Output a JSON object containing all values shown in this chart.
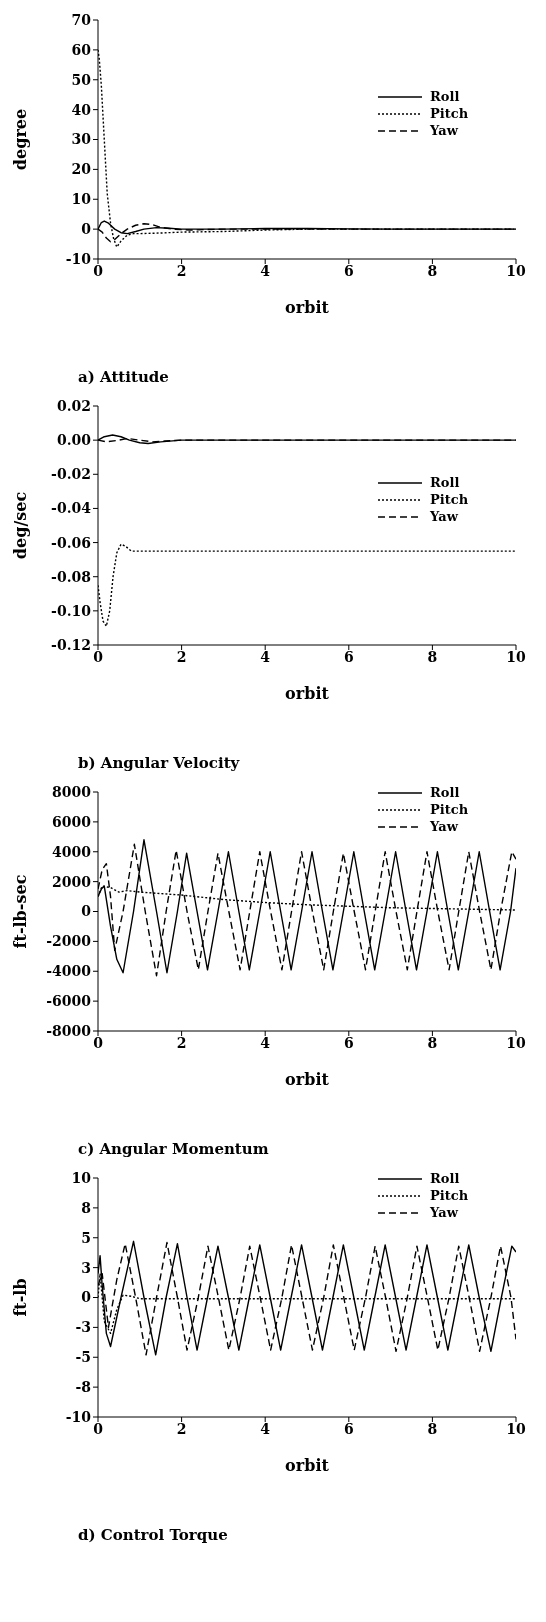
{
  "chart_data": [
    {
      "type": "line",
      "title": "a) Attitude",
      "xlabel": "orbit",
      "ylabel": "degree",
      "xlim": [
        0,
        10
      ],
      "xticks": [
        0,
        2,
        4,
        6,
        8,
        10
      ],
      "ylim": [
        -10,
        70
      ],
      "yticks": [
        -10,
        0,
        10,
        20,
        30,
        40,
        50,
        60,
        70
      ],
      "legend": "right",
      "series": [
        {
          "name": "Roll",
          "color": "#000000",
          "line_style": "solid",
          "x": [
            0,
            0.08,
            0.15,
            0.25,
            0.4,
            0.55,
            0.7,
            0.9,
            1.1,
            1.4,
            1.7,
            2,
            3,
            4,
            5,
            6,
            7,
            8,
            9,
            10
          ],
          "values": [
            0,
            2.2,
            2.7,
            2,
            0,
            -1.2,
            -1.5,
            -0.8,
            0,
            0.5,
            0.3,
            0,
            0,
            0.2,
            0.2,
            0.1,
            0,
            0,
            0,
            0
          ]
        },
        {
          "name": "Pitch",
          "color": "#000000",
          "line_style": "dotted",
          "x": [
            0,
            0.03,
            0.08,
            0.15,
            0.22,
            0.3,
            0.37,
            0.45,
            0.55,
            0.7,
            0.85,
            1,
            1.5,
            2,
            3,
            4,
            5,
            6,
            8,
            10
          ],
          "values": [
            60,
            57,
            48,
            30,
            12,
            2,
            -3,
            -6,
            -4,
            -2,
            -1.5,
            -1.5,
            -1.3,
            -1,
            -0.8,
            -0.3,
            0,
            0,
            0,
            0
          ]
        },
        {
          "name": "Yaw",
          "color": "#000000",
          "line_style": "dashed",
          "x": [
            0,
            0.1,
            0.2,
            0.3,
            0.4,
            0.55,
            0.7,
            0.9,
            1.1,
            1.3,
            1.5,
            1.8,
            2.2,
            3,
            4,
            6,
            8,
            10
          ],
          "values": [
            0,
            -1,
            -3,
            -4.2,
            -3.5,
            -1.5,
            0,
            1.3,
            1.8,
            1.5,
            0.6,
            0,
            -0.3,
            0,
            0,
            0,
            0,
            0
          ]
        }
      ]
    },
    {
      "type": "line",
      "title": "b) Angular Velocity",
      "xlabel": "orbit",
      "ylabel": "deg/sec",
      "xlim": [
        0,
        10
      ],
      "xticks": [
        0,
        2,
        4,
        6,
        8,
        10
      ],
      "ylim": [
        -0.12,
        0.02
      ],
      "yticks": [
        {
          "value": -0.12,
          "label": "-0.12"
        },
        {
          "value": -0.1,
          "label": "-0.10"
        },
        {
          "value": -0.08,
          "label": "-0.08"
        },
        {
          "value": -0.06,
          "label": "-0.06"
        },
        {
          "value": -0.04,
          "label": "-0.04"
        },
        {
          "value": -0.02,
          "label": "-0.02"
        },
        {
          "value": 0,
          "label": "0.00"
        },
        {
          "value": 0.02,
          "label": "0.02"
        }
      ],
      "legend": "right",
      "series": [
        {
          "name": "Roll",
          "color": "#000000",
          "line_style": "solid",
          "x": [
            0,
            0.15,
            0.35,
            0.55,
            0.75,
            1,
            1.2,
            1.5,
            2,
            3,
            4,
            6,
            8,
            10
          ],
          "values": [
            0,
            0.002,
            0.003,
            0.002,
            0,
            -0.0015,
            -0.002,
            -0.001,
            0,
            0,
            0,
            0,
            0,
            0
          ]
        },
        {
          "name": "Pitch",
          "color": "#000000",
          "line_style": "dotted",
          "x": [
            0,
            0.05,
            0.12,
            0.2,
            0.28,
            0.36,
            0.45,
            0.55,
            0.65,
            0.8,
            0.95,
            1.2,
            2,
            4,
            6,
            8,
            10
          ],
          "values": [
            -0.085,
            -0.095,
            -0.106,
            -0.109,
            -0.1,
            -0.08,
            -0.066,
            -0.061,
            -0.062,
            -0.065,
            -0.065,
            -0.065,
            -0.065,
            -0.065,
            -0.065,
            -0.065,
            -0.065
          ]
        },
        {
          "name": "Yaw",
          "color": "#000000",
          "line_style": "dashed",
          "x": [
            0,
            0.2,
            0.5,
            0.7,
            1,
            1.3,
            1.6,
            2,
            4,
            10
          ],
          "values": [
            0,
            -0.001,
            0,
            0.001,
            0,
            -0.001,
            -0.0005,
            0,
            0,
            0
          ]
        }
      ]
    },
    {
      "type": "line",
      "title": "c) Angular Momentum",
      "xlabel": "orbit",
      "ylabel": "ft-lb-sec",
      "xlim": [
        0,
        10
      ],
      "xticks": [
        0,
        2,
        4,
        6,
        8,
        10
      ],
      "ylim": [
        -8000,
        8000
      ],
      "yticks": [
        -8000,
        -6000,
        -4000,
        -2000,
        0,
        2000,
        4000,
        6000,
        8000
      ],
      "legend": "top right",
      "series": [
        {
          "name": "Roll",
          "color": "#000000",
          "line_style": "solid",
          "x": [
            0,
            0.08,
            0.15,
            0.3,
            0.45,
            0.6,
            0.85,
            1.1,
            1.4,
            1.65,
            1.9,
            2.12,
            2.37,
            2.62,
            2.87,
            3.12,
            3.37,
            3.62,
            3.87,
            4.12,
            4.37,
            4.62,
            4.87,
            5.12,
            5.37,
            5.62,
            5.87,
            6.12,
            6.37,
            6.62,
            6.87,
            7.12,
            7.37,
            7.62,
            7.87,
            8.12,
            8.37,
            8.62,
            8.87,
            9.12,
            9.37,
            9.62,
            9.87,
            10
          ],
          "values": [
            1000,
            1500,
            1700,
            -1000,
            -3200,
            -4100,
            0,
            4800,
            0,
            -4100,
            0,
            3900,
            0,
            -3900,
            0,
            4000,
            0,
            -3900,
            0,
            4000,
            0,
            -3900,
            0,
            4000,
            0,
            -3900,
            0,
            4000,
            0,
            -3900,
            0,
            4000,
            0,
            -3900,
            0,
            4000,
            0,
            -3900,
            0,
            4000,
            0,
            -3900,
            0,
            2900
          ]
        },
        {
          "name": "Pitch",
          "color": "#000000",
          "line_style": "dotted",
          "x": [
            0,
            0.1,
            0.3,
            0.5,
            0.7,
            1,
            2,
            3,
            4,
            5,
            6,
            7,
            8,
            9,
            10
          ],
          "values": [
            1000,
            1700,
            1600,
            1300,
            1400,
            1300,
            1100,
            800,
            600,
            450,
            350,
            250,
            200,
            150,
            100
          ]
        },
        {
          "name": "Yaw",
          "color": "#000000",
          "line_style": "dashed",
          "x": [
            0,
            0.1,
            0.2,
            0.3,
            0.4,
            0.6,
            0.87,
            1.13,
            1.4,
            1.63,
            1.87,
            2.13,
            2.4,
            2.63,
            2.87,
            3.13,
            3.4,
            3.63,
            3.87,
            4.13,
            4.4,
            4.63,
            4.87,
            5.13,
            5.4,
            5.63,
            5.87,
            6.13,
            6.4,
            6.63,
            6.87,
            7.13,
            7.4,
            7.63,
            7.87,
            8.13,
            8.4,
            8.63,
            8.87,
            9.13,
            9.4,
            9.63,
            9.9,
            10
          ],
          "values": [
            1500,
            2800,
            3200,
            1000,
            -2600,
            0,
            4500,
            0,
            -4300,
            0,
            4100,
            0,
            -3900,
            0,
            3900,
            0,
            -3900,
            0,
            4000,
            0,
            -3900,
            0,
            4000,
            0,
            -3900,
            0,
            3900,
            0,
            -3900,
            0,
            4000,
            0,
            -3900,
            0,
            4000,
            0,
            -3900,
            0,
            4000,
            0,
            -3900,
            0,
            4000,
            3500
          ]
        }
      ]
    },
    {
      "type": "line",
      "title": "d) Control Torque",
      "xlabel": "orbit",
      "ylabel": "ft-lb",
      "xlim": [
        0,
        10
      ],
      "xticks": [
        0,
        2,
        4,
        6,
        8,
        10
      ],
      "ylim": [
        -10,
        10
      ],
      "yticks": [
        -10,
        {
          "value": -7.5,
          "label": "-8"
        },
        -5,
        {
          "value": -2.5,
          "label": "-3"
        },
        0,
        {
          "value": 2.5,
          "label": "3"
        },
        5,
        {
          "value": 7.5,
          "label": "8"
        },
        10
      ],
      "legend": "top right",
      "series": [
        {
          "name": "Roll",
          "color": "#000000",
          "line_style": "solid",
          "x": [
            0,
            0.05,
            0.1,
            0.2,
            0.3,
            0.55,
            0.85,
            1.1,
            1.38,
            1.63,
            1.9,
            2.13,
            2.37,
            2.62,
            2.87,
            3.12,
            3.37,
            3.62,
            3.87,
            4.12,
            4.37,
            4.62,
            4.87,
            5.12,
            5.37,
            5.62,
            5.87,
            6.12,
            6.37,
            6.62,
            6.87,
            7.12,
            7.37,
            7.62,
            7.87,
            8.12,
            8.37,
            8.62,
            8.87,
            9.12,
            9.4,
            9.65,
            9.9,
            10
          ],
          "values": [
            2,
            3.5,
            1,
            -3,
            -4.1,
            0,
            4.7,
            0,
            -4.8,
            0,
            4.5,
            0,
            -4.4,
            0,
            4.3,
            0,
            -4.4,
            0,
            4.4,
            0,
            -4.4,
            0,
            4.4,
            0,
            -4.4,
            0,
            4.4,
            0,
            -4.4,
            0,
            4.4,
            0,
            -4.4,
            0,
            4.4,
            0,
            -4.4,
            0,
            4.4,
            0,
            -4.5,
            0,
            4.3,
            3.8
          ]
        },
        {
          "name": "Pitch",
          "color": "#000000",
          "line_style": "dotted",
          "x": [
            0,
            0.05,
            0.15,
            0.3,
            0.45,
            0.6,
            0.8,
            1,
            2,
            4,
            6,
            8,
            10
          ],
          "values": [
            0,
            2,
            -2,
            -3,
            -1,
            0.2,
            0.1,
            -0.1,
            -0.1,
            -0.1,
            -0.1,
            -0.1,
            -0.1
          ]
        },
        {
          "name": "Yaw",
          "color": "#000000",
          "line_style": "dashed",
          "x": [
            0,
            0.1,
            0.25,
            0.45,
            0.65,
            0.9,
            1.15,
            1.4,
            1.65,
            1.9,
            2.13,
            2.4,
            2.63,
            2.88,
            3.13,
            3.4,
            3.63,
            3.88,
            4.13,
            4.4,
            4.63,
            4.88,
            5.13,
            5.4,
            5.63,
            5.88,
            6.13,
            6.4,
            6.63,
            6.88,
            7.13,
            7.4,
            7.63,
            7.88,
            8.13,
            8.4,
            8.63,
            8.88,
            9.13,
            9.4,
            9.63,
            9.88,
            10
          ],
          "values": [
            1,
            2,
            -2.5,
            1.5,
            4.5,
            0,
            -4.8,
            0,
            4.6,
            0,
            -4.4,
            0,
            4.3,
            0,
            -4.4,
            0,
            4.3,
            0,
            -4.4,
            0,
            4.4,
            0,
            -4.4,
            0,
            4.4,
            0,
            -4.4,
            0,
            4.3,
            0,
            -4.5,
            0,
            4.3,
            0,
            -4.4,
            0,
            4.3,
            0,
            -4.5,
            0,
            4.3,
            0,
            -3.5
          ]
        }
      ]
    }
  ]
}
